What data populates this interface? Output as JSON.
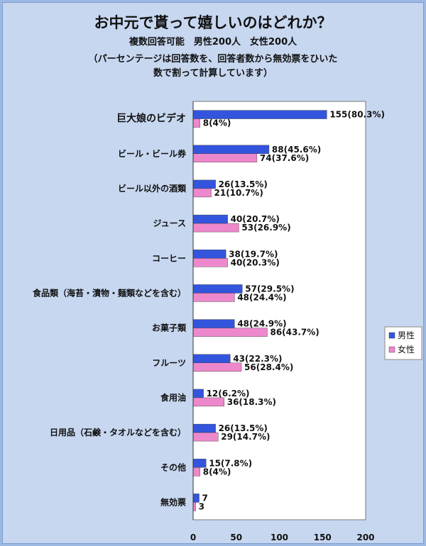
{
  "header": {
    "title": "お中元で貰って嬉しいのはどれか？",
    "subtitle": "複数回答可能　男性200人　女性200人",
    "note_line1": "（パーセンテージは回答数を、回答者数から無効票をひいた",
    "note_line2": "数で割って計算しています）"
  },
  "chart_data": {
    "type": "bar",
    "orientation": "horizontal",
    "categories": [
      "巨大娘のビデオ",
      "ビール・ビール券",
      "ビール以外の酒類",
      "ジュース",
      "コーヒー",
      "食品類（海苔・漬物・麺類などを含む）",
      "お菓子類",
      "フルーツ",
      "食用油",
      "日用品（石鹸・タオルなどを含む）",
      "その他",
      "無効票"
    ],
    "series": [
      {
        "name": "男性",
        "color": "#3355dd",
        "values": [
          155,
          88,
          26,
          40,
          38,
          57,
          48,
          43,
          12,
          26,
          15,
          7
        ],
        "labels": [
          "155(80.3%)",
          "88(45.6%)",
          "26(13.5%)",
          "40(20.7%)",
          "38(19.7%)",
          "57(29.5%)",
          "48(24.9%)",
          "43(22.3%)",
          "12(6.2%)",
          "26(13.5%)",
          "15(7.8%)",
          "7"
        ]
      },
      {
        "name": "女性",
        "color": "#ee88cc",
        "values": [
          8,
          74,
          21,
          53,
          40,
          48,
          86,
          56,
          36,
          29,
          8,
          3
        ],
        "labels": [
          "8(4%)",
          "74(37.6%)",
          "21(10.7%)",
          "53(26.9%)",
          "40(20.3%)",
          "48(24.4%)",
          "86(43.7%)",
          "56(28.4%)",
          "36(18.3%)",
          "29(14.7%)",
          "8(4%)",
          "3"
        ]
      }
    ],
    "xticks": [
      "0",
      "50",
      "100",
      "150",
      "200"
    ],
    "xlim": [
      0,
      200
    ],
    "legend": "right",
    "grid": false
  }
}
